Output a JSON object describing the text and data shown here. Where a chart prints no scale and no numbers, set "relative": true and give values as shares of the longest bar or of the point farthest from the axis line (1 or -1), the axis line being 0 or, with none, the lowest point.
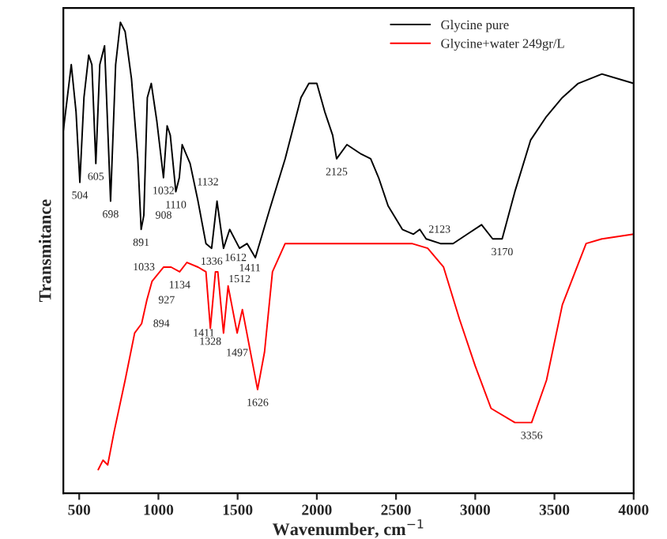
{
  "chart_data": {
    "type": "line",
    "relative": true,
    "xlabel": "Wavenumber, cm$^{−1}$",
    "ylabel": "Transmitance",
    "xlim": [
      400,
      4000
    ],
    "xticks": [
      500,
      1000,
      1500,
      2000,
      2500,
      3000,
      3500,
      4000
    ],
    "legend": "top right",
    "grid": false,
    "marker": "none",
    "line_style": "solid",
    "series": [
      {
        "name": "Glycine pure",
        "color": "#000000",
        "x": [
          400,
          450,
          480,
          504,
          530,
          560,
          580,
          605,
          630,
          660,
          698,
          730,
          760,
          790,
          830,
          870,
          891,
          908,
          930,
          955,
          990,
          1032,
          1055,
          1075,
          1110,
          1132,
          1150,
          1200,
          1250,
          1300,
          1336,
          1370,
          1411,
          1450,
          1512,
          1560,
          1612,
          1700,
          1800,
          1900,
          1950,
          2000,
          2050,
          2100,
          2125,
          2190,
          2280,
          2340,
          2390,
          2450,
          2540,
          2610,
          2650,
          2690,
          2780,
          2860,
          2950,
          3040,
          3110,
          3170,
          3250,
          3350,
          3450,
          3550,
          3650,
          3800,
          4000
        ],
        "values": [
          0.77,
          0.91,
          0.81,
          0.66,
          0.84,
          0.93,
          0.91,
          0.7,
          0.91,
          0.95,
          0.62,
          0.91,
          1.0,
          0.98,
          0.88,
          0.71,
          0.56,
          0.59,
          0.84,
          0.87,
          0.79,
          0.67,
          0.78,
          0.76,
          0.64,
          0.67,
          0.74,
          0.7,
          0.62,
          0.53,
          0.52,
          0.62,
          0.52,
          0.56,
          0.52,
          0.53,
          0.5,
          0.6,
          0.71,
          0.84,
          0.87,
          0.87,
          0.81,
          0.76,
          0.71,
          0.74,
          0.72,
          0.71,
          0.67,
          0.61,
          0.56,
          0.55,
          0.56,
          0.54,
          0.53,
          0.53,
          0.55,
          0.57,
          0.54,
          0.54,
          0.64,
          0.75,
          0.8,
          0.84,
          0.87,
          0.89,
          0.87
        ]
      },
      {
        "name": "Glycine+water 249gr/L",
        "color": "#ff0000",
        "x": [
          620,
          650,
          680,
          720,
          790,
          850,
          894,
          927,
          960,
          1033,
          1080,
          1134,
          1180,
          1250,
          1300,
          1328,
          1360,
          1375,
          1411,
          1440,
          1497,
          1530,
          1626,
          1670,
          1720,
          1800,
          1900,
          2050,
          2150,
          2250,
          2400,
          2450,
          2600,
          2700,
          2800,
          2900,
          3000,
          3100,
          3250,
          3356,
          3450,
          3550,
          3700,
          3800,
          4000
        ],
        "values": [
          0.05,
          0.07,
          0.06,
          0.13,
          0.24,
          0.34,
          0.36,
          0.41,
          0.45,
          0.48,
          0.48,
          0.47,
          0.49,
          0.48,
          0.47,
          0.35,
          0.47,
          0.47,
          0.34,
          0.44,
          0.34,
          0.39,
          0.22,
          0.3,
          0.47,
          0.53,
          0.53,
          0.53,
          0.53,
          0.53,
          0.53,
          0.53,
          0.53,
          0.52,
          0.48,
          0.37,
          0.27,
          0.18,
          0.15,
          0.15,
          0.24,
          0.4,
          0.53,
          0.54,
          0.55
        ]
      }
    ],
    "annotations": [
      {
        "text": "504",
        "x": 504,
        "y": 0.66
      },
      {
        "text": "605",
        "x": 605,
        "y": 0.7
      },
      {
        "text": "698",
        "x": 698,
        "y": 0.62
      },
      {
        "text": "891",
        "x": 891,
        "y": 0.56
      },
      {
        "text": "908",
        "x": 908,
        "y": 0.59
      },
      {
        "text": "1032",
        "x": 1032,
        "y": 0.67
      },
      {
        "text": "1110",
        "x": 1110,
        "y": 0.64
      },
      {
        "text": "1132",
        "x": 1132,
        "y": 0.67
      },
      {
        "text": "1336",
        "x": 1336,
        "y": 0.52
      },
      {
        "text": "1411",
        "x": 1411,
        "y": 0.52
      },
      {
        "text": "1512",
        "x": 1512,
        "y": 0.52
      },
      {
        "text": "1612",
        "x": 1612,
        "y": 0.5
      },
      {
        "text": "2125",
        "x": 2125,
        "y": 0.71
      },
      {
        "text": "2123",
        "x": 2650,
        "y": 0.56
      },
      {
        "text": "3170",
        "x": 3170,
        "y": 0.54
      },
      {
        "text": "894",
        "x": 894,
        "y": 0.36
      },
      {
        "text": "927",
        "x": 927,
        "y": 0.41
      },
      {
        "text": "1033",
        "x": 1033,
        "y": 0.48
      },
      {
        "text": "1134",
        "x": 1134,
        "y": 0.47
      },
      {
        "text": "1328",
        "x": 1328,
        "y": 0.35
      },
      {
        "text": "1411",
        "x": 1411,
        "y": 0.34
      },
      {
        "text": "1497",
        "x": 1497,
        "y": 0.34
      },
      {
        "text": "1626",
        "x": 1626,
        "y": 0.22
      },
      {
        "text": "3356",
        "x": 3356,
        "y": 0.15
      }
    ]
  }
}
